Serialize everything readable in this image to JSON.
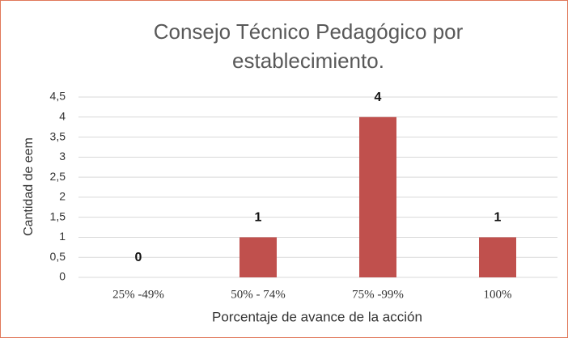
{
  "chart_data": {
    "type": "bar",
    "title": "Consejo Técnico Pedagógico por establecimiento.",
    "x_label": "Porcentaje de avance de la acción",
    "y_label": "Cantidad de eem",
    "categories": [
      "25% -49%",
      "50% - 74%",
      "75% -99%",
      "100%"
    ],
    "values": [
      0,
      1,
      4,
      1
    ],
    "color": "#c0504d",
    "ylim": [
      0,
      4.5
    ],
    "yticks": [
      0,
      {
        "value": 0.5,
        "label": "0,5"
      },
      1,
      {
        "value": 1.5,
        "label": "1,5"
      },
      2,
      {
        "value": 2.5,
        "label": "2,5"
      },
      3,
      {
        "value": 3.5,
        "label": "3,5"
      },
      4,
      {
        "value": 4.5,
        "label": "4,5"
      }
    ],
    "grid": true
  }
}
